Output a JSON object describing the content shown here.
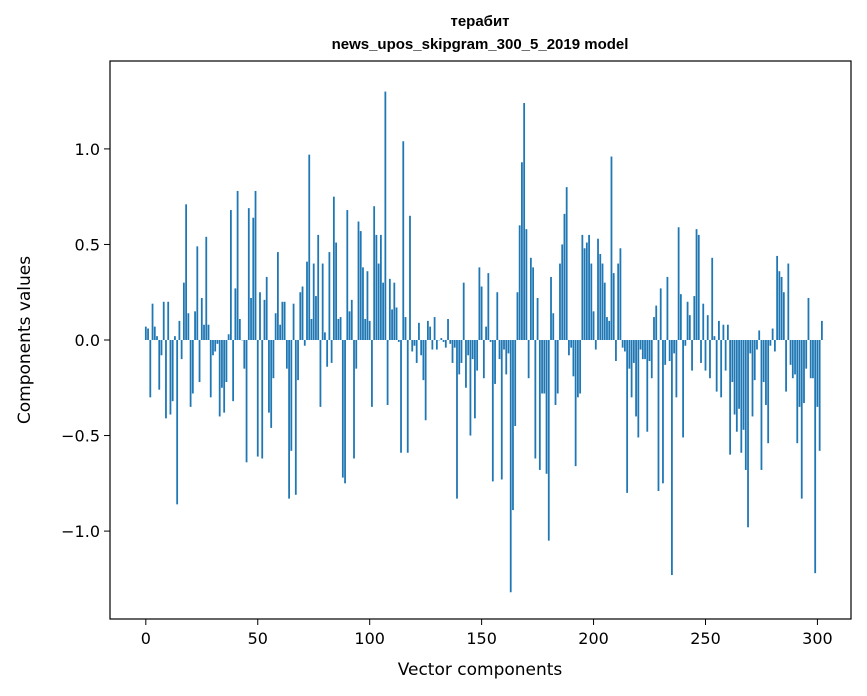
{
  "chart_data": {
    "type": "bar",
    "title_lines": [
      "терабит",
      "news_upos_skipgram_300_5_2019 model"
    ],
    "xlabel": "Vector components",
    "ylabel": "Components values",
    "xlim": [
      -16,
      315
    ],
    "ylim": [
      -1.46,
      1.46
    ],
    "x_ticks": [
      0,
      50,
      100,
      150,
      200,
      250,
      300
    ],
    "x_tick_labels": [
      "0",
      "50",
      "100",
      "150",
      "200",
      "250",
      "300"
    ],
    "y_ticks": [
      -1.0,
      -0.5,
      0.0,
      0.5,
      1.0
    ],
    "y_tick_labels": [
      "−1.0",
      "−0.5",
      "0.0",
      "0.5",
      "1.0"
    ],
    "grid": false,
    "bar_color": "#1f77b4",
    "series": [
      {
        "values": [
          0.07,
          0.06,
          -0.3,
          0.19,
          0.07,
          0.02,
          -0.26,
          -0.08,
          0.2,
          -0.41,
          0.2,
          -0.39,
          -0.32,
          0.02,
          -0.86,
          0.1,
          -0.1,
          0.3,
          0.71,
          0.14,
          -0.35,
          -0.28,
          0.15,
          0.49,
          -0.22,
          0.22,
          0.08,
          0.54,
          0.08,
          -0.3,
          -0.08,
          -0.06,
          -0.02,
          -0.4,
          -0.25,
          -0.38,
          -0.22,
          0.03,
          0.68,
          -0.32,
          0.27,
          0.78,
          0.11,
          0.0,
          -0.15,
          -0.64,
          0.69,
          0.22,
          0.64,
          0.78,
          -0.61,
          0.25,
          -0.62,
          0.21,
          0.33,
          -0.38,
          -0.46,
          -0.2,
          0.14,
          0.46,
          0.08,
          0.2,
          0.2,
          -0.15,
          -0.83,
          -0.58,
          0.19,
          -0.81,
          -0.21,
          0.25,
          0.28,
          -0.03,
          0.41,
          0.97,
          0.11,
          0.4,
          0.23,
          0.55,
          -0.35,
          0.4,
          0.04,
          -0.14,
          0.46,
          -0.12,
          0.75,
          0.51,
          0.11,
          0.12,
          -0.72,
          -0.75,
          0.68,
          0.15,
          0.21,
          -0.62,
          -0.15,
          0.62,
          0.57,
          0.38,
          0.11,
          0.36,
          0.1,
          -0.35,
          0.7,
          0.55,
          0.4,
          0.55,
          0.3,
          1.3,
          -0.34,
          0.32,
          0.16,
          0.3,
          0.17,
          -0.01,
          -0.59,
          1.04,
          0.12,
          -0.59,
          0.65,
          -0.06,
          -0.03,
          -0.12,
          0.09,
          -0.08,
          -0.21,
          -0.42,
          0.1,
          0.07,
          -0.05,
          0.12,
          -0.05,
          0.0,
          0.01,
          -0.01,
          -0.04,
          0.11,
          -0.02,
          -0.12,
          -0.04,
          -0.83,
          -0.18,
          -0.12,
          0.3,
          -0.25,
          -0.08,
          -0.5,
          -0.1,
          -0.41,
          -0.16,
          0.38,
          0.28,
          -0.2,
          0.07,
          0.35,
          -0.01,
          -0.74,
          -0.23,
          0.25,
          -0.1,
          -0.73,
          -0.05,
          -0.18,
          -0.07,
          -1.32,
          -0.89,
          -0.45,
          0.25,
          0.6,
          0.93,
          1.24,
          0.58,
          -0.2,
          0.43,
          0.38,
          -0.62,
          0.22,
          -0.68,
          -0.28,
          -0.28,
          -0.7,
          -1.05,
          0.33,
          0.14,
          -0.34,
          -0.28,
          0.4,
          0.5,
          0.66,
          0.8,
          -0.08,
          -0.04,
          -0.19,
          -0.66,
          -0.3,
          -0.28,
          0.55,
          0.48,
          0.51,
          0.55,
          0.4,
          0.15,
          -0.05,
          0.53,
          0.45,
          0.4,
          0.3,
          0.12,
          0.1,
          0.96,
          0.35,
          -0.11,
          0.4,
          0.48,
          -0.04,
          -0.06,
          -0.8,
          -0.15,
          -0.3,
          -0.12,
          -0.4,
          -0.51,
          -0.05,
          -0.1,
          -0.1,
          -0.48,
          -0.11,
          -0.2,
          0.12,
          0.18,
          -0.79,
          0.27,
          -0.75,
          -0.13,
          0.33,
          -0.11,
          -1.23,
          -0.07,
          -0.3,
          0.59,
          0.24,
          -0.51,
          -0.03,
          0.2,
          0.13,
          -0.16,
          0.23,
          0.58,
          0.55,
          -0.12,
          0.19,
          -0.16,
          0.13,
          -0.2,
          0.43,
          0.02,
          -0.27,
          0.1,
          -0.3,
          0.08,
          -0.16,
          0.08,
          -0.6,
          -0.22,
          -0.39,
          -0.48,
          -0.36,
          -0.59,
          -0.47,
          -0.68,
          -0.98,
          -0.07,
          -0.4,
          -0.21,
          -0.05,
          0.05,
          -0.68,
          -0.22,
          -0.34,
          -0.54,
          -0.03,
          0.06,
          -0.06,
          0.44,
          0.36,
          0.33,
          0.25,
          -0.27,
          0.4,
          -0.13,
          -0.2,
          -0.18,
          -0.54,
          -0.35,
          -0.83,
          -0.33,
          -0.15,
          0.22,
          -0.2,
          -0.2,
          -1.22,
          -0.35,
          -0.58,
          0.1
        ]
      }
    ]
  }
}
